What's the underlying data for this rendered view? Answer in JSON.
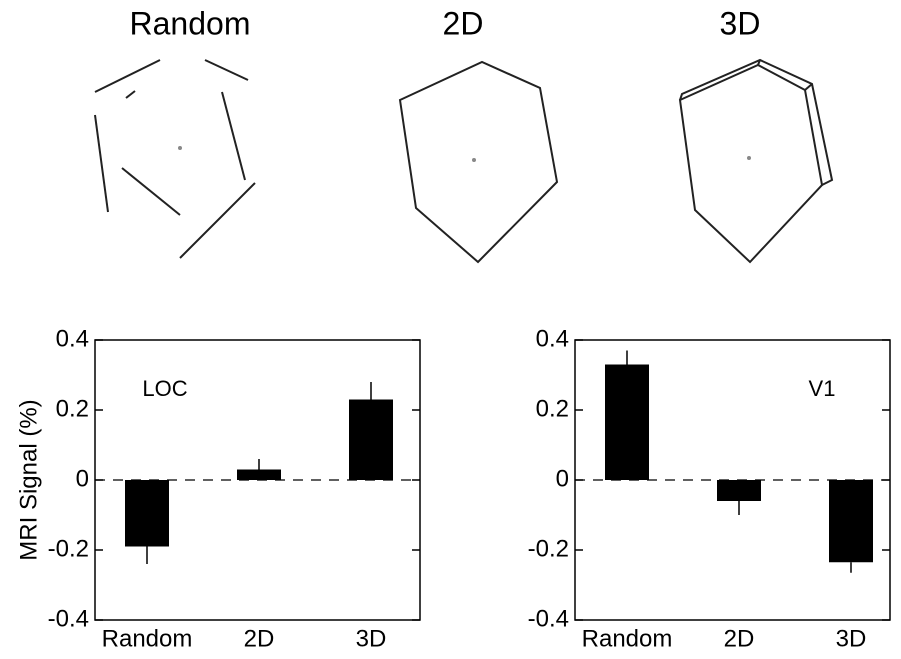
{
  "stimuli": [
    "Random",
    "2D",
    "3D"
  ],
  "chart_data": [
    {
      "type": "bar",
      "ylabel": "MRI Signal (%)",
      "annotation": "LOC",
      "categories": [
        "Random",
        "2D",
        "3D"
      ],
      "values": [
        -0.19,
        0.03,
        0.23
      ],
      "errors": [
        0.05,
        0.03,
        0.05
      ],
      "color": "#000000",
      "ylim": [
        -0.4,
        0.4
      ],
      "yticks": [
        -0.4,
        -0.2,
        0,
        0.2,
        0.4
      ]
    },
    {
      "type": "bar",
      "annotation": "V1",
      "categories": [
        "Random",
        "2D",
        "3D"
      ],
      "values": [
        0.33,
        -0.06,
        -0.235
      ],
      "errors": [
        0.04,
        0.04,
        0.03
      ],
      "color": "#000000",
      "ylim": [
        -0.4,
        0.4
      ],
      "yticks": [
        -0.4,
        -0.2,
        0,
        0.2,
        0.4
      ]
    }
  ]
}
